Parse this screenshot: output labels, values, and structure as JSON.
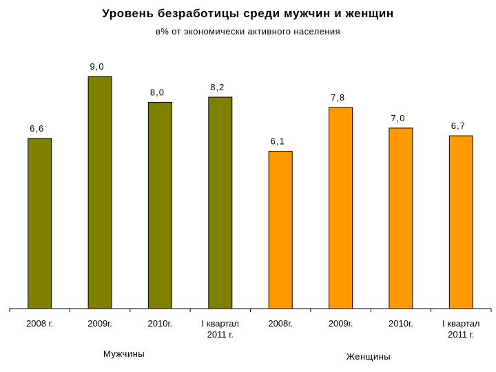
{
  "chart_data": {
    "type": "bar",
    "title": "Уровень безработицы среди мужчин и женщин",
    "subtitle": "в% от экономически активного населения",
    "categories": [
      "2008 г.",
      "2009г.",
      "2010г.",
      "I квартал\n2011 г.",
      "2008г.",
      "2009г.",
      "2010г.",
      "I квартал\n2011 г."
    ],
    "value_labels": [
      "6,6",
      "9,0",
      "8,0",
      "8,2",
      "6,1",
      "7,8",
      "7,0",
      "6,7"
    ],
    "values": [
      6.6,
      9.0,
      8.0,
      8.2,
      6.1,
      7.8,
      7.0,
      6.7
    ],
    "bar_groups": [
      0,
      0,
      0,
      0,
      1,
      1,
      1,
      1
    ],
    "groups": [
      {
        "label": "Мужчины",
        "color": "#808000"
      },
      {
        "label": "Женщины",
        "color": "#FF9900"
      }
    ],
    "ylim": [
      0,
      10
    ],
    "grid": false,
    "legend": "none"
  }
}
